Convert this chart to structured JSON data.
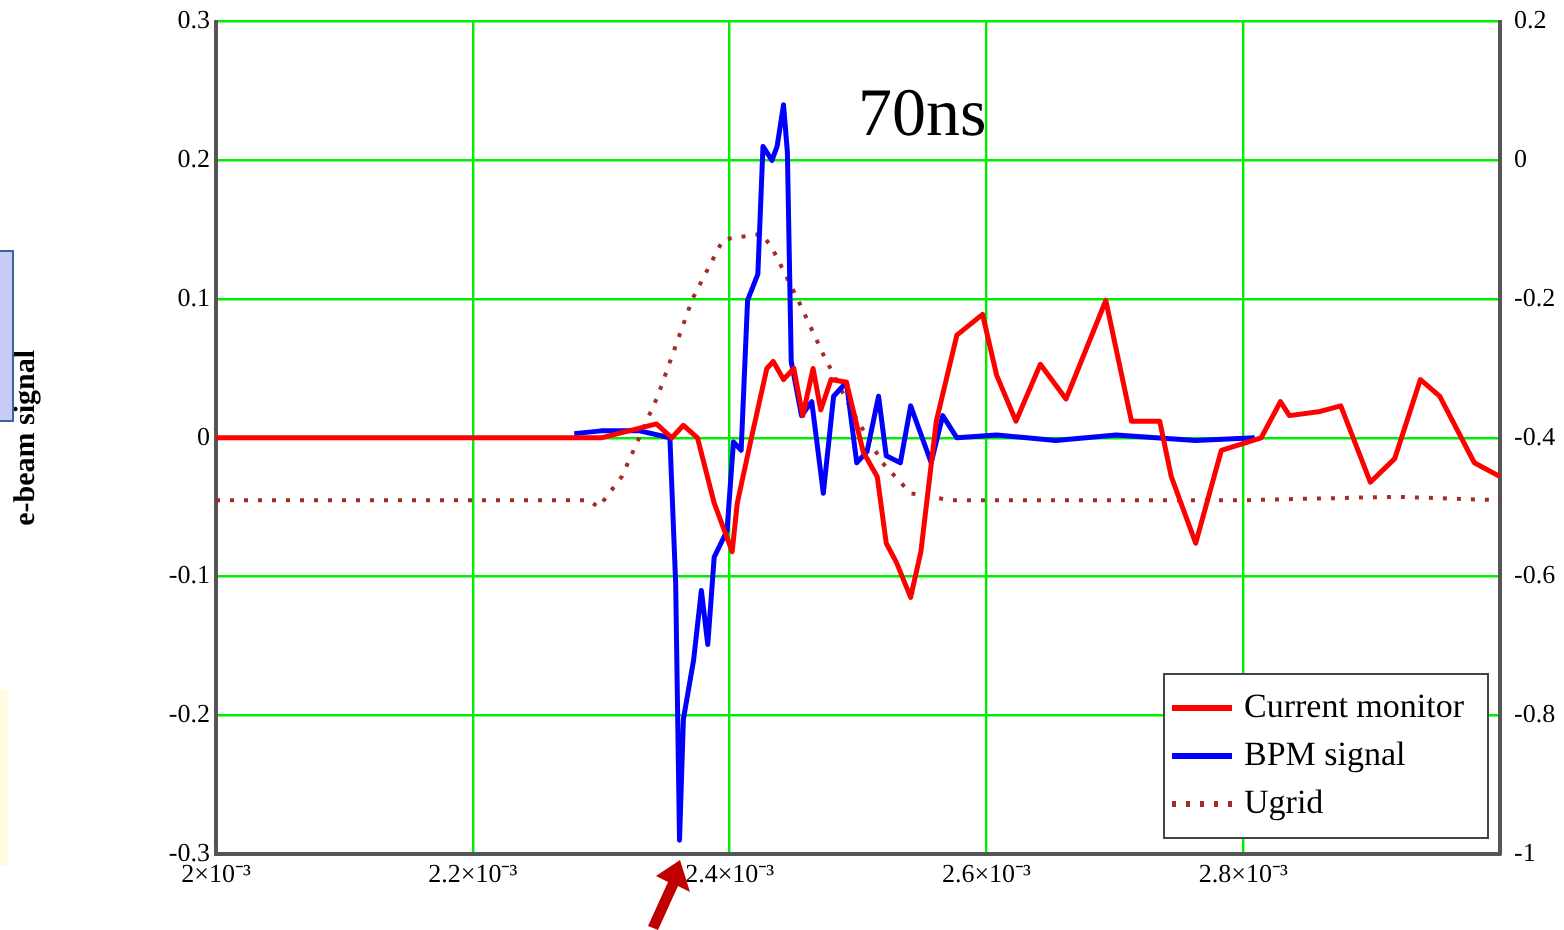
{
  "chart_data": {
    "type": "line",
    "ylabel": "e-beam signal",
    "annotations": [
      "70ns"
    ],
    "xlim": [
      0.002,
      0.003
    ],
    "xticks": [
      {
        "value": 0.002,
        "label": "2×10⁻³"
      },
      {
        "value": 0.0022,
        "label": "2.2×10⁻³"
      },
      {
        "value": 0.0024,
        "label": "2.4×10⁻³"
      },
      {
        "value": 0.0026,
        "label": "2.6×10⁻³"
      },
      {
        "value": 0.0028,
        "label": "2.8×10⁻³"
      }
    ],
    "ylim": [
      -0.3,
      0.3
    ],
    "yticks": [
      -0.3,
      -0.2,
      -0.1,
      0,
      0.1,
      0.2,
      0.3
    ],
    "y2lim": [
      -1,
      0.2
    ],
    "y2ticks": [
      -1,
      -0.8,
      -0.6,
      -0.4,
      -0.2,
      0,
      0.2
    ],
    "grid": true,
    "legend": "bottom right",
    "marker": "none",
    "series": [
      {
        "name": "Current monitor",
        "color": "#ff0000",
        "line_style": "solid",
        "x": [
          0.002,
          0.0021,
          0.0022,
          0.0023,
          0.002343,
          0.002355,
          0.002364,
          0.002375,
          0.002388,
          0.002402,
          0.002406,
          0.002417,
          0.002429,
          0.002434,
          0.002442,
          0.00245,
          0.002457,
          0.002465,
          0.002471,
          0.002479,
          0.002491,
          0.002504,
          0.002515,
          0.002522,
          0.00253,
          0.002541,
          0.002549,
          0.002561,
          0.002577,
          0.002597,
          0.002608,
          0.002623,
          0.002642,
          0.002662,
          0.002693,
          0.002713,
          0.002735,
          0.002744,
          0.002763,
          0.002783,
          0.002814,
          0.002829,
          0.002836,
          0.00286,
          0.002876,
          0.002899,
          0.002918,
          0.002938,
          0.002953,
          0.00298,
          0.003
        ],
        "values": [
          0,
          0,
          0,
          0,
          0.01,
          0,
          0.009,
          0,
          -0.047,
          -0.082,
          -0.047,
          0,
          0.05,
          0.055,
          0.042,
          0.05,
          0.016,
          0.05,
          0.02,
          0.042,
          0.04,
          -0.01,
          -0.028,
          -0.076,
          -0.09,
          -0.115,
          -0.082,
          0.012,
          0.074,
          0.089,
          0.045,
          0.012,
          0.053,
          0.028,
          0.099,
          0.012,
          0.012,
          -0.028,
          -0.076,
          -0.009,
          0,
          0.026,
          0.016,
          0.019,
          0.023,
          -0.032,
          -0.015,
          0.042,
          0.03,
          -0.018,
          -0.028
        ]
      },
      {
        "name": "BPM signal",
        "color": "#0000ff",
        "line_style": "solid",
        "x": [
          0.002279,
          0.0023,
          0.00233,
          0.0023535,
          0.002358,
          0.002361,
          0.002364,
          0.002372,
          0.002378,
          0.002383,
          0.002388,
          0.002398,
          0.002403,
          0.002409,
          0.002414,
          0.002422,
          0.002426,
          0.002433,
          0.002437,
          0.002442,
          0.002445,
          0.002448,
          0.002456,
          0.002464,
          0.002473,
          0.002481,
          0.002491,
          0.002499,
          0.002507,
          0.002516,
          0.002522,
          0.002533,
          0.002541,
          0.002557,
          0.002566,
          0.002577,
          0.002608,
          0.002654,
          0.002701,
          0.002763,
          0.002809
        ],
        "values": [
          0.003,
          0.005,
          0.005,
          0,
          -0.105,
          -0.29,
          -0.203,
          -0.16,
          -0.11,
          -0.149,
          -0.086,
          -0.067,
          -0.003,
          -0.009,
          0.099,
          0.118,
          0.21,
          0.2,
          0.21,
          0.24,
          0.206,
          0.055,
          0.016,
          0.026,
          -0.04,
          0.03,
          0.04,
          -0.018,
          -0.01,
          0.03,
          -0.013,
          -0.018,
          0.023,
          -0.018,
          0.016,
          0,
          0.002,
          -0.002,
          0.002,
          -0.002,
          0
        ]
      },
      {
        "name": "Ugrid",
        "color": "#a52a2a",
        "line_style": "dotted",
        "axis": "y2",
        "x": [
          0.002,
          0.0022,
          0.00229,
          0.002298,
          0.002316,
          0.002344,
          0.002371,
          0.002395,
          0.002425,
          0.002433,
          0.002453,
          0.002473,
          0.002495,
          0.002519,
          0.002541,
          0.002572,
          0.0028,
          0.002919,
          0.003
        ],
        "values": [
          -0.49,
          -0.49,
          -0.49,
          -0.5,
          -0.456,
          -0.34,
          -0.2,
          -0.114,
          -0.106,
          -0.126,
          -0.2,
          -0.28,
          -0.36,
          -0.436,
          -0.48,
          -0.49,
          -0.49,
          -0.485,
          -0.49
        ]
      }
    ]
  }
}
